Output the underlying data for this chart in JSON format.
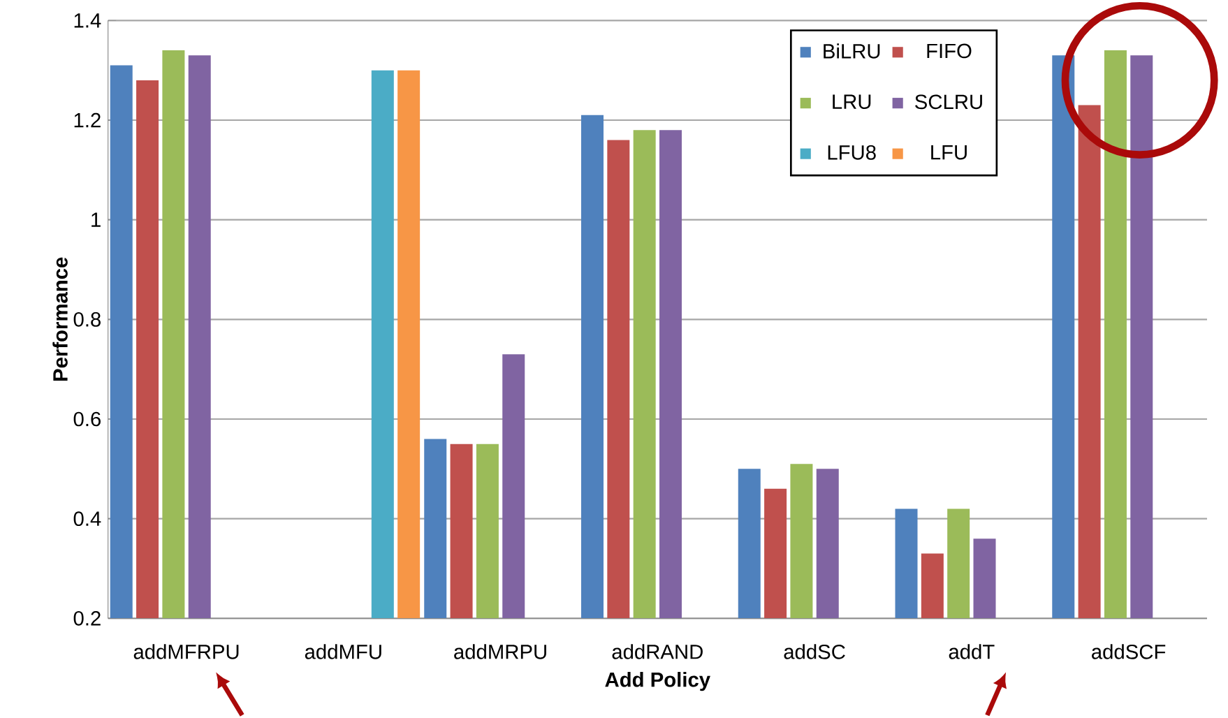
{
  "chart_data": {
    "type": "bar",
    "xlabel": "Add Policy",
    "ylabel": "Performance",
    "categories": [
      "addMFRPU",
      "addMFU",
      "addMRPU",
      "addRAND",
      "addSC",
      "addT",
      "addSCF"
    ],
    "series": [
      {
        "name": "BiLRU",
        "color": "#4f81bd",
        "values": [
          1.31,
          null,
          0.56,
          1.21,
          0.5,
          0.42,
          1.33
        ]
      },
      {
        "name": "FIFO",
        "color": "#c0504d",
        "values": [
          1.28,
          null,
          0.55,
          1.16,
          0.46,
          0.33,
          1.23
        ]
      },
      {
        "name": "LRU",
        "color": "#9bbb59",
        "values": [
          1.34,
          null,
          0.55,
          1.18,
          0.51,
          0.42,
          1.34
        ]
      },
      {
        "name": "SCLRU",
        "color": "#8064a2",
        "values": [
          1.33,
          null,
          0.73,
          1.18,
          0.5,
          0.36,
          1.33
        ]
      },
      {
        "name": "LFU8",
        "color": "#4bacc6",
        "values": [
          null,
          1.3,
          null,
          null,
          null,
          null,
          null
        ]
      },
      {
        "name": "LFU",
        "color": "#f79646",
        "values": [
          null,
          1.3,
          null,
          null,
          null,
          null,
          null
        ]
      }
    ],
    "ylim": [
      0.2,
      1.4
    ],
    "yticks": [
      0.2,
      0.4,
      0.6,
      0.8,
      1,
      1.2,
      1.4
    ],
    "grid": "y",
    "legend": "top"
  }
}
